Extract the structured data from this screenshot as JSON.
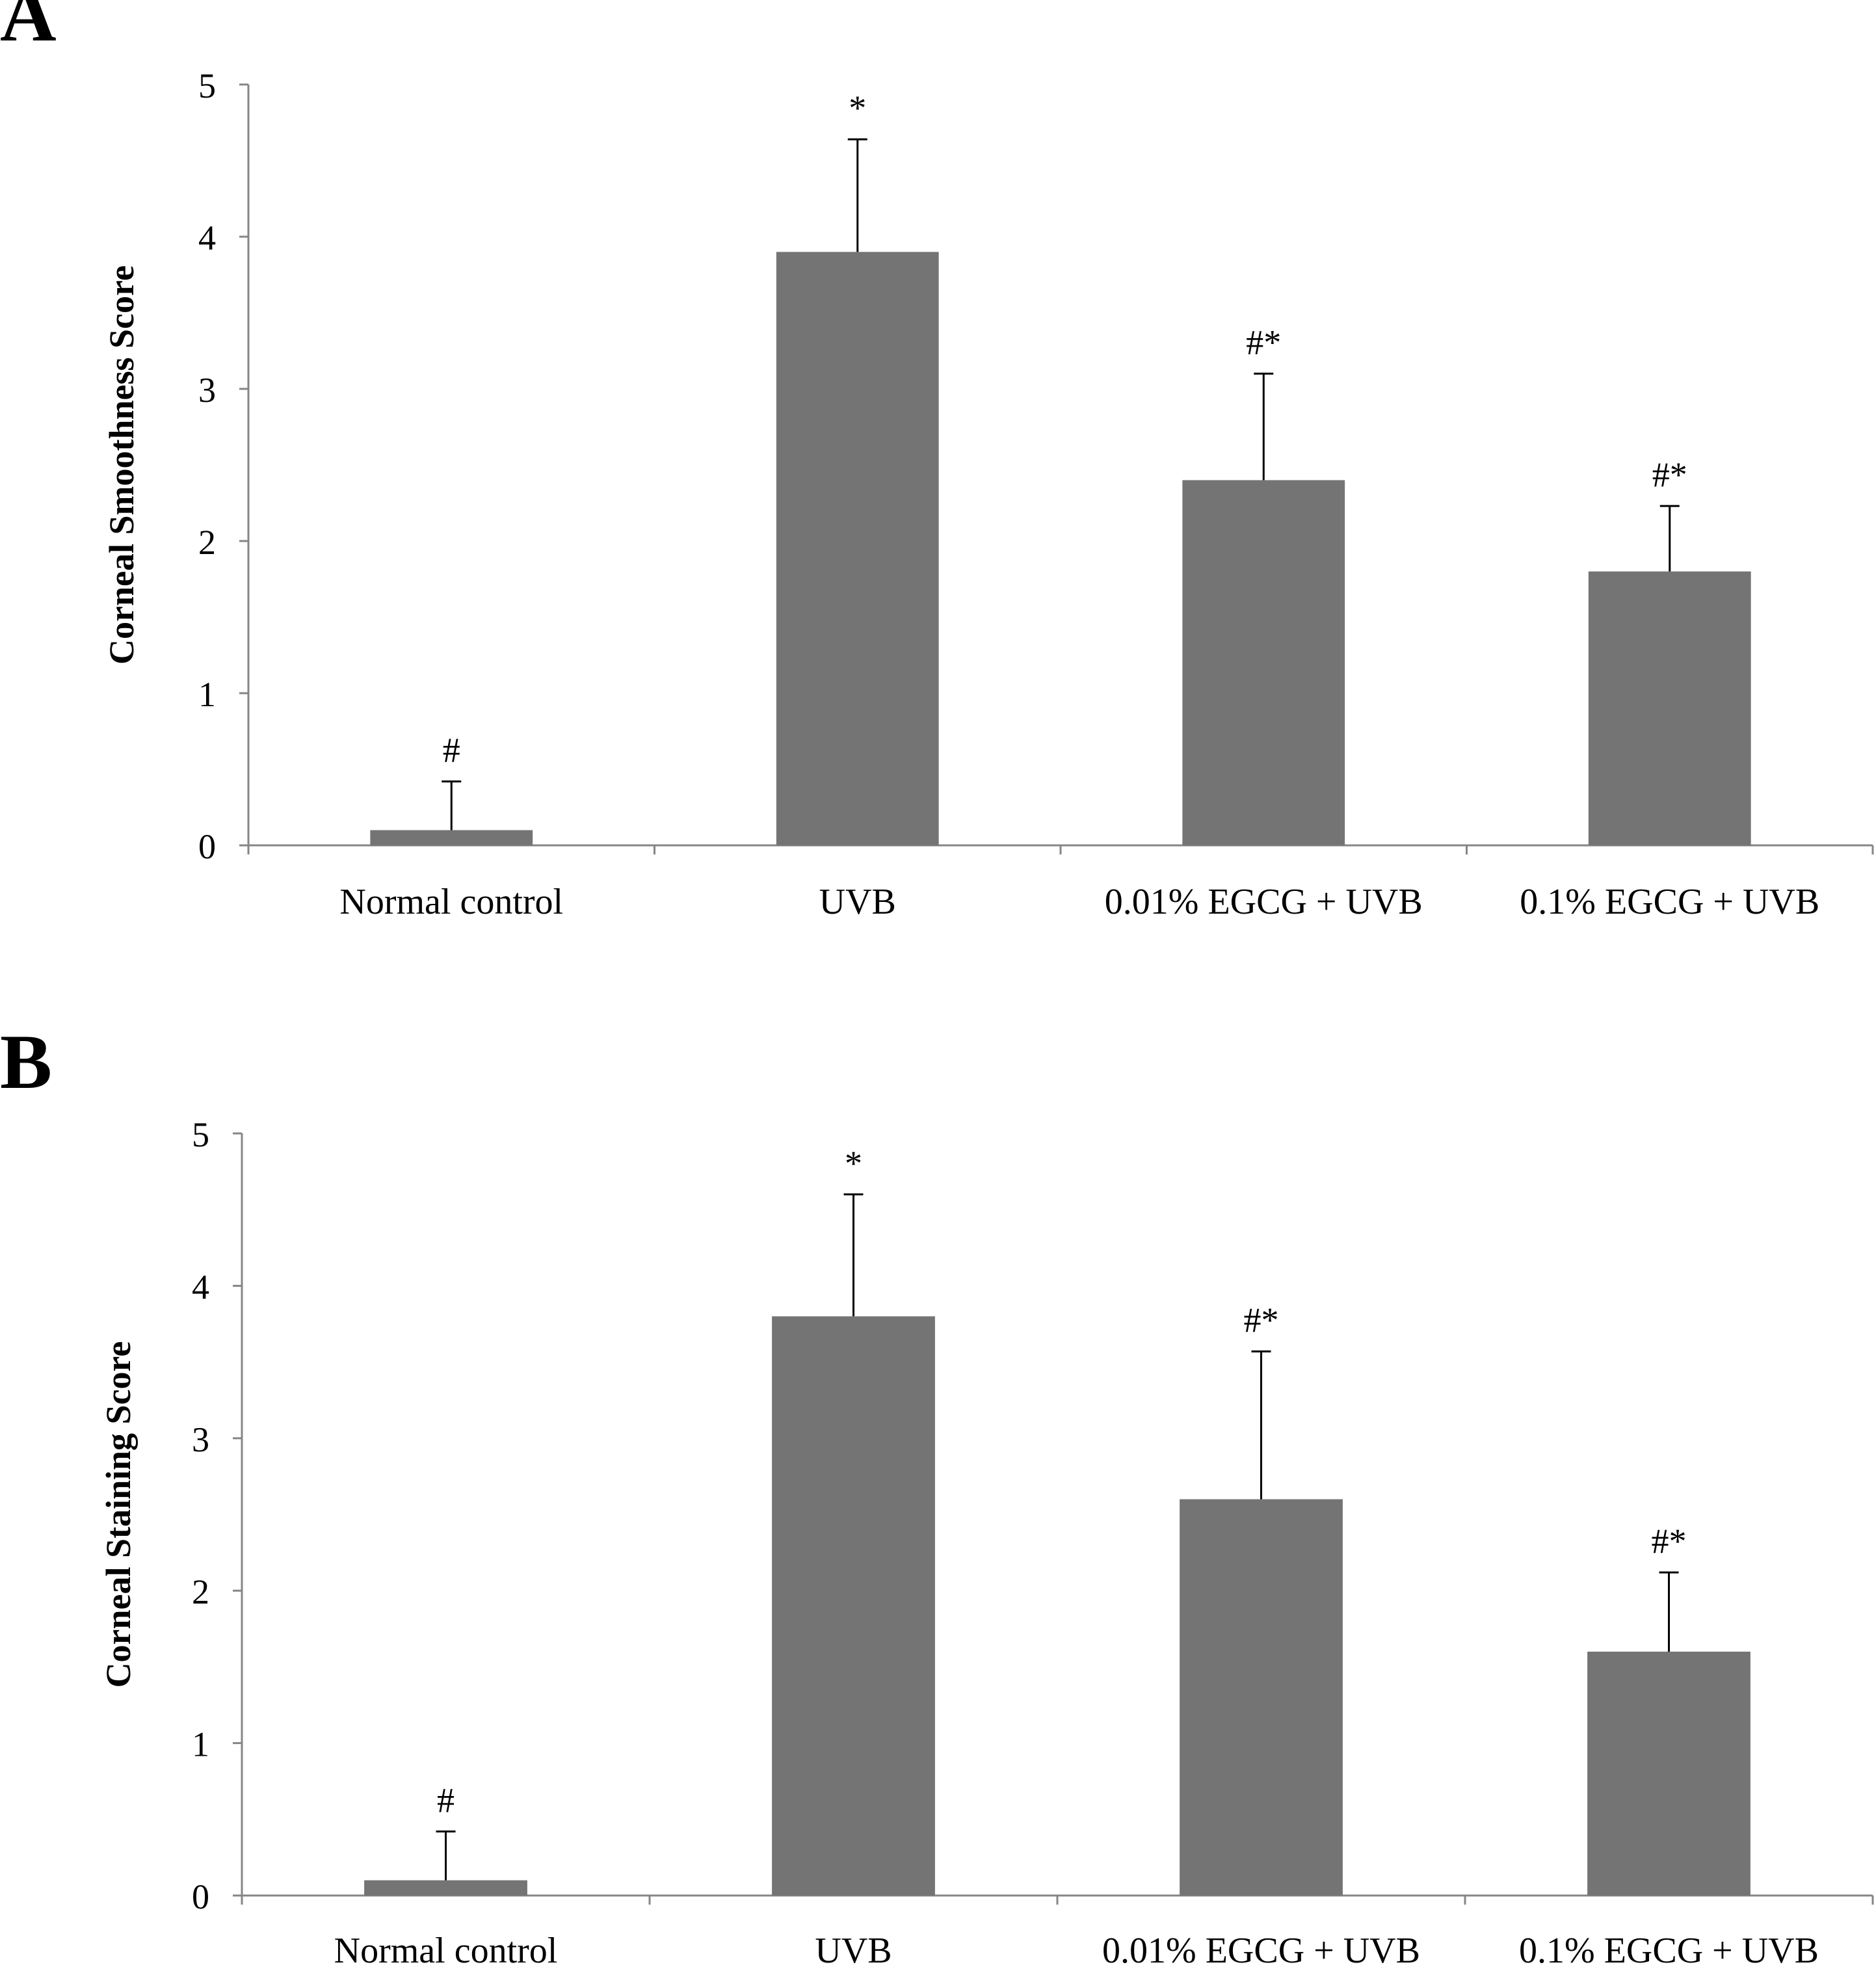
{
  "panels": [
    {
      "letter": "A"
    },
    {
      "letter": "B"
    }
  ],
  "colors": {
    "bar": "#747474",
    "axis": "#868686",
    "error_bar": "#000000",
    "text": "#000000"
  },
  "chart_data": [
    {
      "type": "bar",
      "title": "",
      "xlabel": "",
      "ylabel": "Corneal Smoothness Score",
      "ylim": [
        0,
        5
      ],
      "yticks": [
        "0",
        "1",
        "2",
        "3",
        "4",
        "5"
      ],
      "grid": false,
      "categories": [
        "Normal control",
        "UVB",
        "0.01% EGCG + UVB",
        "0.1% EGCG + UVB"
      ],
      "values": [
        0.1,
        3.9,
        2.4,
        1.8
      ],
      "error_bars": [
        0.32,
        0.74,
        0.7,
        0.43
      ],
      "annotations": [
        "#",
        "*",
        "#*",
        "#*"
      ]
    },
    {
      "type": "bar",
      "title": "",
      "xlabel": "",
      "ylabel": "Corneal Staining Score",
      "ylim": [
        0,
        5
      ],
      "yticks": [
        "0",
        "1",
        "2",
        "3",
        "4",
        "5"
      ],
      "grid": false,
      "categories": [
        "Normal control",
        "UVB",
        "0.01% EGCG + UVB",
        "0.1% EGCG + UVB"
      ],
      "values": [
        0.1,
        3.8,
        2.6,
        1.6
      ],
      "error_bars": [
        0.32,
        0.8,
        0.97,
        0.52
      ],
      "annotations": [
        "#",
        "*",
        "#*",
        "#*"
      ]
    }
  ]
}
